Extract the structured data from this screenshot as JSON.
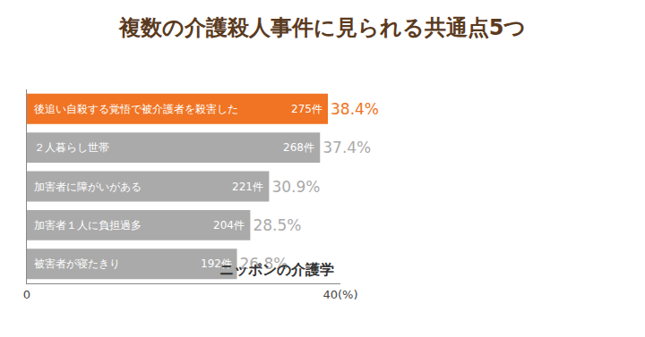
{
  "chart_data": {
    "type": "bar",
    "title": "複数の介護殺人事件に見られる共通点5つ",
    "orientation": "horizontal",
    "categories": [
      "後追い自殺する覚悟で被介護者を殺害した",
      "２人暮らし世帯",
      "加害者に障がいがある",
      "加害者１人に負担過多",
      "被害者が寝たきり"
    ],
    "values": [
      38.4,
      37.4,
      30.9,
      28.5,
      26.8
    ],
    "value_labels": [
      "38.4%",
      "37.4%",
      "30.9%",
      "28.5%",
      "26.8%"
    ],
    "count_labels": [
      "275件",
      "268件",
      "221件",
      "204件",
      "192件"
    ],
    "colors": [
      "#f07423",
      "#aaaaaa",
      "#aaaaaa",
      "#aaaaaa",
      "#aaaaaa"
    ],
    "xlim": [
      0,
      40
    ],
    "xticks": [
      0,
      {
        "value": 40,
        "label": "40(%)"
      }
    ],
    "data_labels": true,
    "tick_labels": "x",
    "grid": false,
    "logo_text": "ニッポンの介護学"
  }
}
